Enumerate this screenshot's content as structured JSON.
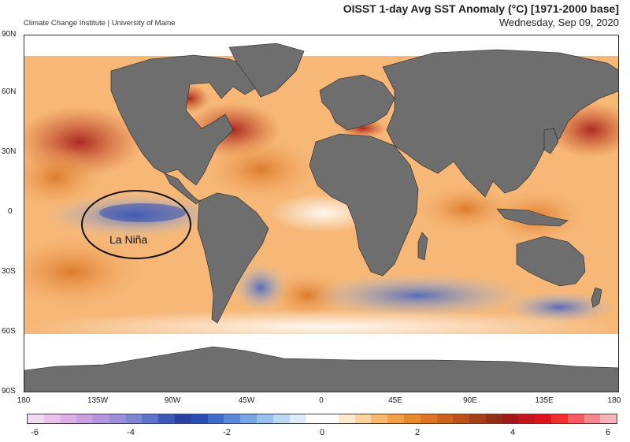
{
  "header": {
    "credit": "Climate Change Institute | University of Maine",
    "title": "OISST 1-day Avg SST Anomaly (°C) [1971-2000 base]",
    "date": "Wednesday, Sep 09, 2020"
  },
  "axes": {
    "lat_labels": [
      "90N",
      "60N",
      "30N",
      "0",
      "30S",
      "60S",
      "90S"
    ],
    "lon_labels": [
      "180",
      "135W",
      "90W",
      "45W",
      "0",
      "45E",
      "90E",
      "135E",
      "180"
    ]
  },
  "annotation": {
    "label": "La Niña"
  },
  "colorbar": {
    "ticks": [
      "-6",
      "-4",
      "-2",
      "0",
      "2",
      "4",
      "6"
    ],
    "min": -6,
    "max": 6,
    "colors": [
      "#f3d9ef",
      "#e9c2ea",
      "#dbaee6",
      "#cba0e0",
      "#b596dc",
      "#9f8fd8",
      "#7f86d2",
      "#5f74c8",
      "#3e58b8",
      "#2a3fa4",
      "#2a4eb4",
      "#3f6bc9",
      "#5a88d8",
      "#7aa5e3",
      "#9cc0ec",
      "#bdd8f3",
      "#dcebf8",
      "#ffffff",
      "#ffffff",
      "#fde9cf",
      "#fbd3a3",
      "#f7b86f",
      "#f29f45",
      "#e98a2c",
      "#dc7523",
      "#cd621e",
      "#bb501c",
      "#a53f1a",
      "#8f2f17",
      "#a3171a",
      "#c2141c",
      "#dc131f",
      "#f0302f",
      "#f55b63",
      "#f6878f",
      "#f6b3ba"
    ]
  },
  "colors": {
    "land": "#6e6e6e",
    "ocean_warm": "#f2a55c",
    "ocean_cool": "#8eb6e8",
    "ice": "#ffffff"
  }
}
